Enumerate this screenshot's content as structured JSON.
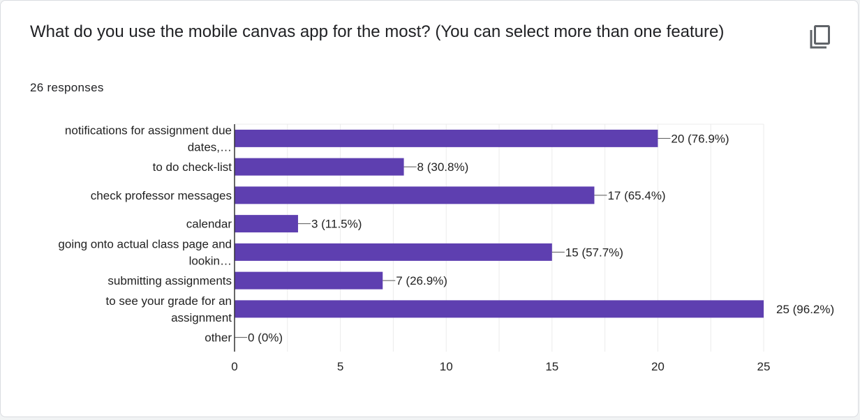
{
  "question": {
    "title": "What do you use the mobile canvas app for the most? (You can select more than one feature)",
    "responses": "26 responses"
  },
  "copy_icon": "copy-icon",
  "colors": {
    "bar": "#5e3fb0",
    "axis": "#333333",
    "grid": "#ebebeb",
    "text": "#222222"
  },
  "chart_data": {
    "type": "bar",
    "orientation": "horizontal",
    "categories": [
      [
        "notifications for assignment due",
        "dates,…"
      ],
      [
        "to do check-list"
      ],
      [
        "check professor messages"
      ],
      [
        "calendar"
      ],
      [
        "going onto actual class page and",
        "lookin…"
      ],
      [
        "submitting assignments"
      ],
      [
        "to see your grade for an",
        "assignment"
      ],
      [
        "other"
      ]
    ],
    "values": [
      20,
      8,
      17,
      3,
      15,
      7,
      25,
      0
    ],
    "data_labels": [
      "20 (76.9%)",
      "8 (30.8%)",
      "17 (65.4%)",
      "3 (11.5%)",
      "15 (57.7%)",
      "7 (26.9%)",
      "25 (96.2%)",
      "0 (0%)"
    ],
    "xlim": [
      0,
      25
    ],
    "xticks": [
      0,
      5,
      10,
      15,
      20,
      25
    ],
    "xlabel": "",
    "ylabel": "",
    "grid": true,
    "legend": "none"
  }
}
